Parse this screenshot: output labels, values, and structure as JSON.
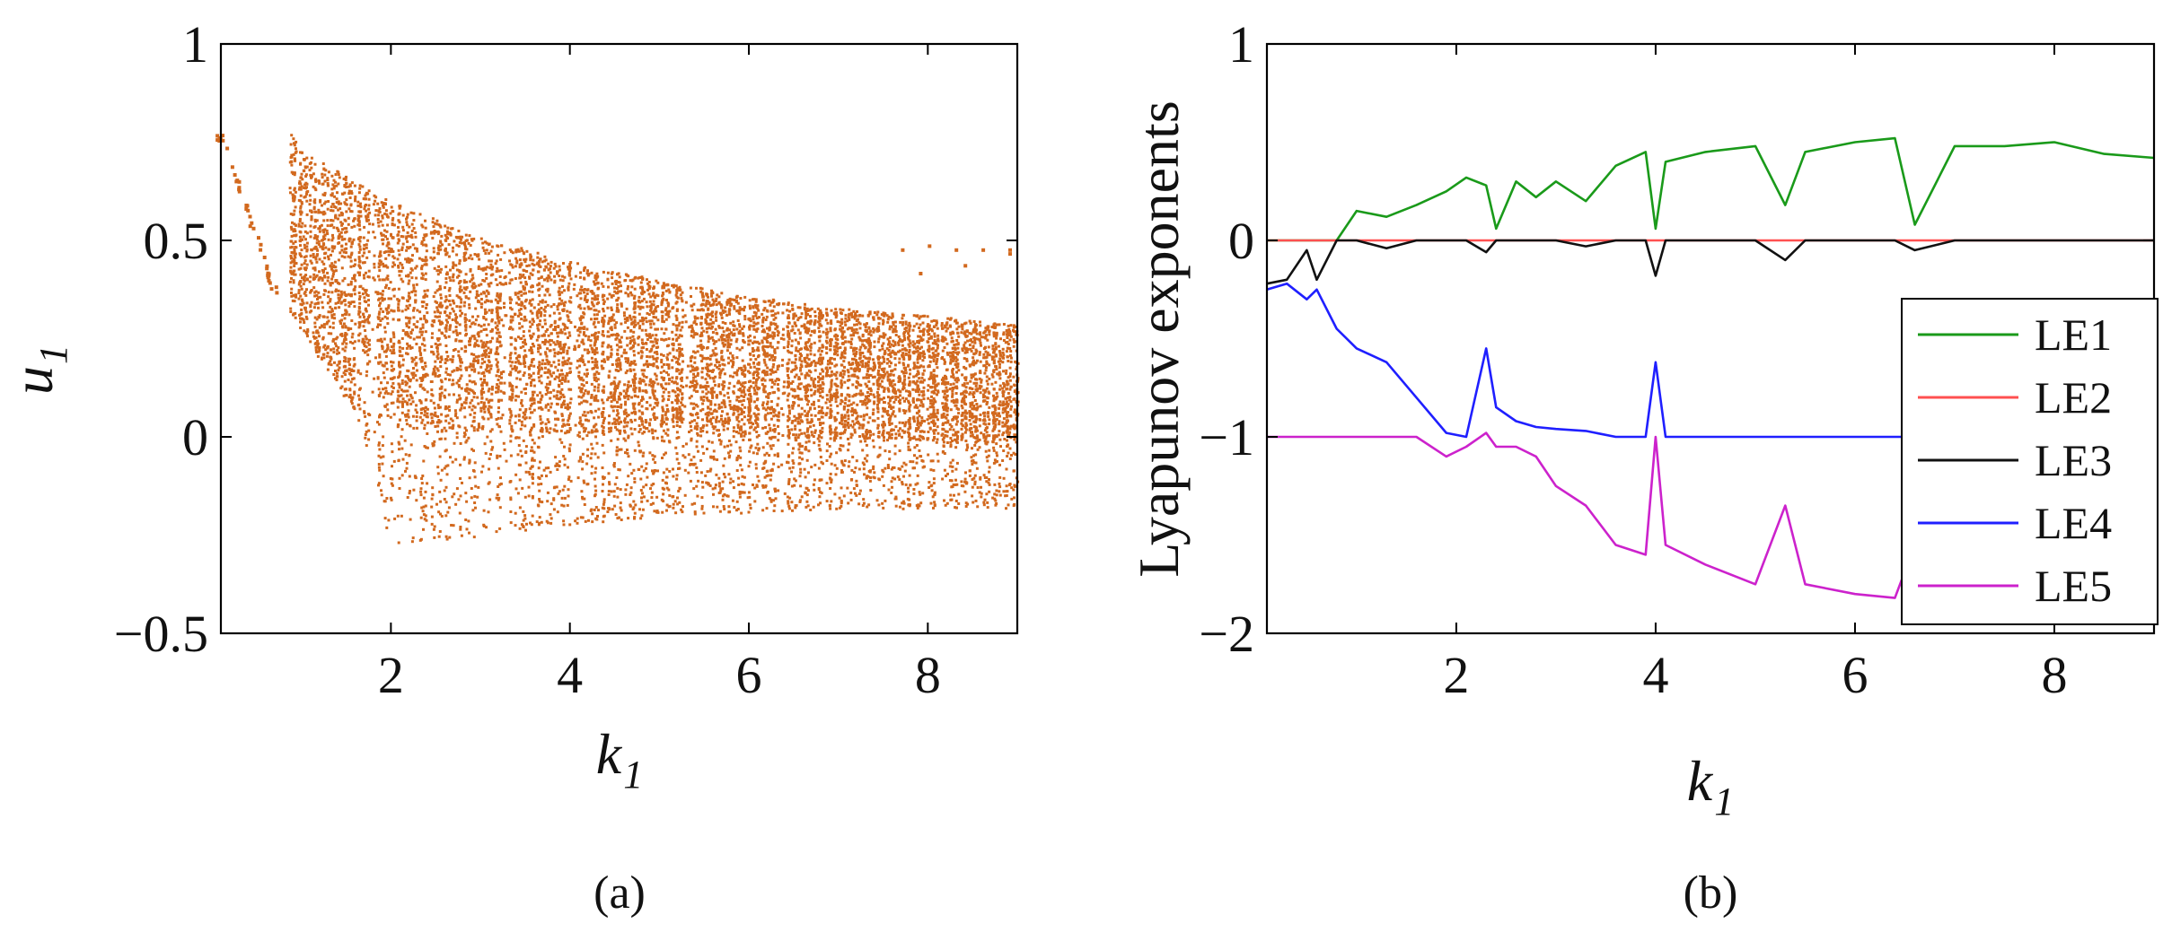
{
  "chart_data": [
    {
      "type": "scatter",
      "panel_label": "(a)",
      "xlabel": "k",
      "xlabel_sub": "1",
      "ylabel": "u",
      "ylabel_sub": "1",
      "xlim": [
        0.1,
        9.0
      ],
      "ylim": [
        -0.5,
        1.0
      ],
      "xticks": [
        2,
        4,
        6,
        8
      ],
      "xtick_labels": [
        "2",
        "4",
        "6",
        "8"
      ],
      "yticks": [
        -0.5,
        0,
        0.5,
        1
      ],
      "ytick_labels": [
        "−0.5",
        "0",
        "0.5",
        "1"
      ],
      "grid": false,
      "color": "#d2691e",
      "upper_envelope": {
        "k": [
          0.85,
          1,
          2,
          3,
          4,
          5,
          6,
          7,
          8,
          9
        ],
        "u": [
          0.78,
          0.73,
          0.6,
          0.51,
          0.45,
          0.4,
          0.36,
          0.33,
          0.31,
          0.29
        ]
      },
      "lower_envelope": {
        "k": [
          0.7,
          1.6,
          2,
          3,
          4,
          5,
          6,
          7,
          8,
          9
        ],
        "u": [
          0.38,
          0.06,
          -0.27,
          -0.25,
          -0.22,
          -0.2,
          -0.19,
          -0.18,
          -0.18,
          -0.18
        ]
      },
      "periodic_branch": {
        "k": [
          0.1,
          0.25,
          0.4,
          0.55,
          0.65
        ],
        "u": [
          0.76,
          0.67,
          0.56,
          0.47,
          0.38
        ]
      },
      "window_gaps": [
        1.8,
        3.25,
        4.05,
        5.3,
        6.35
      ],
      "isolated_points": {
        "k": [
          7.7,
          8.0,
          8.3,
          8.6,
          8.9,
          8.9,
          7.9,
          8.4
        ],
        "u": [
          0.48,
          0.49,
          0.48,
          0.48,
          0.48,
          0.47,
          0.42,
          0.44
        ]
      }
    },
    {
      "type": "line",
      "panel_label": "(b)",
      "xlabel": "k",
      "xlabel_sub": "1",
      "ylabel": "Lyapunov exponents",
      "xlim": [
        0.1,
        9.0
      ],
      "ylim": [
        -2,
        1
      ],
      "xticks": [
        2,
        4,
        6,
        8
      ],
      "xtick_labels": [
        "2",
        "4",
        "6",
        "8"
      ],
      "yticks": [
        -2,
        -1,
        0,
        1
      ],
      "ytick_labels": [
        "−2",
        "−1",
        "0",
        "1"
      ],
      "grid": false,
      "legend_position": "right",
      "x": [
        0.1,
        0.3,
        0.5,
        0.6,
        0.8,
        1.0,
        1.3,
        1.6,
        1.9,
        2.1,
        2.3,
        2.4,
        2.6,
        2.8,
        3.0,
        3.3,
        3.6,
        3.9,
        4.0,
        4.1,
        4.5,
        5.0,
        5.3,
        5.5,
        6.0,
        6.4,
        6.6,
        7.0,
        7.5,
        8.0,
        8.5,
        9.0
      ],
      "series": [
        {
          "name": "LE1",
          "color": "#1a9a1a",
          "values": [
            0.0,
            0.0,
            0.0,
            0.0,
            0.0,
            0.15,
            0.12,
            0.18,
            0.25,
            0.32,
            0.28,
            0.06,
            0.3,
            0.22,
            0.3,
            0.2,
            0.38,
            0.45,
            0.06,
            0.4,
            0.45,
            0.48,
            0.18,
            0.45,
            0.5,
            0.52,
            0.08,
            0.48,
            0.48,
            0.5,
            0.44,
            0.42
          ]
        },
        {
          "name": "LE2",
          "color": "#ff5050",
          "values": [
            0,
            0,
            0,
            0,
            0,
            0,
            0,
            0,
            0,
            0,
            0,
            0,
            0,
            0,
            0,
            0,
            0,
            0,
            0,
            0,
            0,
            0,
            0,
            0,
            0,
            0,
            0,
            0,
            0,
            0,
            0,
            0
          ]
        },
        {
          "name": "LE3",
          "color": "#111111",
          "values": [
            -0.22,
            -0.2,
            -0.05,
            -0.2,
            0.0,
            0.0,
            -0.04,
            0.0,
            0.0,
            0.0,
            -0.06,
            0.0,
            0.0,
            0.0,
            0.0,
            -0.03,
            0.0,
            0.0,
            -0.18,
            0.0,
            0.0,
            0.0,
            -0.1,
            0.0,
            0.0,
            0.0,
            -0.05,
            0.0,
            0.0,
            0.0,
            0.0,
            0.0
          ]
        },
        {
          "name": "LE4",
          "color": "#1f1fff",
          "values": [
            -0.25,
            -0.22,
            -0.3,
            -0.25,
            -0.45,
            -0.55,
            -0.62,
            -0.8,
            -0.98,
            -1.0,
            -0.55,
            -0.85,
            -0.92,
            -0.95,
            -0.96,
            -0.97,
            -1.0,
            -1.0,
            -0.62,
            -1.0,
            -1.0,
            -1.0,
            -1.0,
            -1.0,
            -1.0,
            -1.0,
            -1.0,
            -1.0,
            -1.0,
            -1.0,
            -1.0,
            -1.0
          ]
        },
        {
          "name": "LE5",
          "color": "#cc22cc",
          "values": [
            -1.0,
            -1.0,
            -1.0,
            -1.0,
            -1.0,
            -1.0,
            -1.0,
            -1.0,
            -1.1,
            -1.05,
            -0.98,
            -1.05,
            -1.05,
            -1.1,
            -1.25,
            -1.35,
            -1.55,
            -1.6,
            -1.0,
            -1.55,
            -1.65,
            -1.75,
            -1.35,
            -1.75,
            -1.8,
            -1.82,
            -1.55,
            -1.85,
            -1.8,
            -1.88,
            -1.88,
            -1.9
          ]
        }
      ]
    }
  ]
}
